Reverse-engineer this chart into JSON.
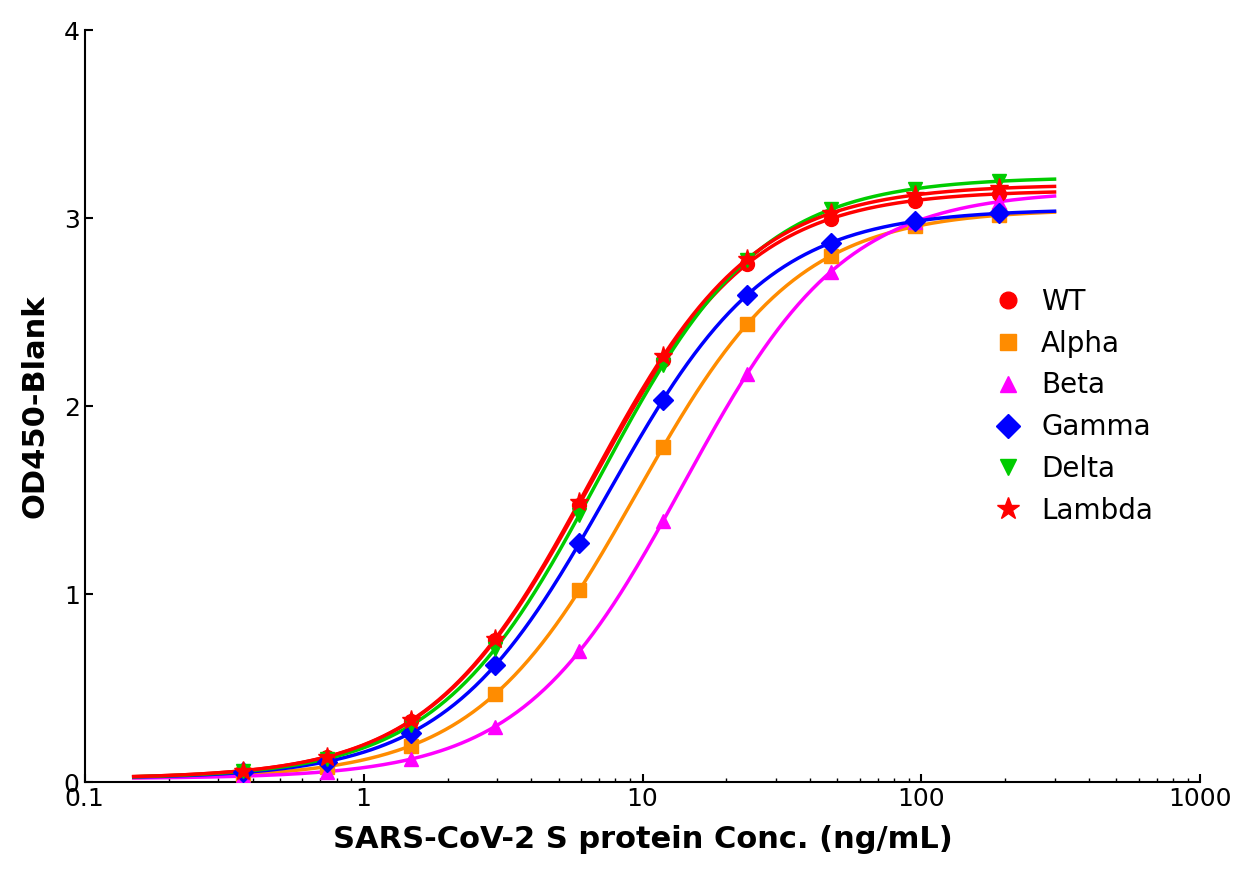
{
  "title": "",
  "xlabel": "SARS-CoV-2 S protein Conc. (ng/mL)",
  "ylabel": "OD450-Blank",
  "xlim": [
    0.1,
    1000
  ],
  "ylim": [
    0,
    4
  ],
  "yticks": [
    0,
    1,
    2,
    3,
    4
  ],
  "series": [
    {
      "name": "WT",
      "color": "#FF0000",
      "marker": "o",
      "marker_size": 10,
      "ec50": 6.5,
      "hill": 1.5,
      "top": 3.15,
      "bottom": 0.02
    },
    {
      "name": "Alpha",
      "color": "#FF8C00",
      "marker": "s",
      "marker_size": 10,
      "ec50": 9.5,
      "hill": 1.5,
      "top": 3.05,
      "bottom": 0.02
    },
    {
      "name": "Beta",
      "color": "#FF00FF",
      "marker": "^",
      "marker_size": 10,
      "ec50": 14.0,
      "hill": 1.5,
      "top": 3.15,
      "bottom": 0.02
    },
    {
      "name": "Gamma",
      "color": "#0000FF",
      "marker": "D",
      "marker_size": 10,
      "ec50": 7.5,
      "hill": 1.5,
      "top": 3.05,
      "bottom": 0.02
    },
    {
      "name": "Delta",
      "color": "#00CC00",
      "marker": "v",
      "marker_size": 10,
      "ec50": 7.0,
      "hill": 1.5,
      "top": 3.22,
      "bottom": 0.02
    },
    {
      "name": "Lambda",
      "color": "#FF0000",
      "marker": "*",
      "marker_size": 14,
      "ec50": 6.5,
      "hill": 1.5,
      "top": 3.18,
      "bottom": 0.02
    }
  ],
  "data_x": [
    0.37,
    0.74,
    1.48,
    2.96,
    5.93,
    11.85,
    23.7,
    47.4,
    94.8,
    189.6
  ],
  "background_color": "#FFFFFF",
  "legend_fontsize": 20,
  "axis_fontsize": 22,
  "tick_fontsize": 18,
  "linewidth": 2.5
}
